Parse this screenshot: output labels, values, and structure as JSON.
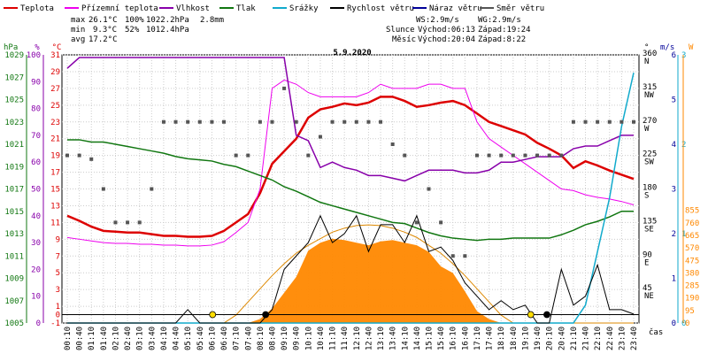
{
  "chart_data": {
    "type": "line",
    "title": "5.9.2020",
    "xlabel": "čas",
    "x": [
      "00:10",
      "00:40",
      "01:10",
      "01:40",
      "02:10",
      "02:40",
      "03:10",
      "03:40",
      "04:10",
      "04:40",
      "05:10",
      "05:40",
      "06:10",
      "06:40",
      "07:10",
      "07:40",
      "08:10",
      "08:40",
      "09:10",
      "09:40",
      "10:10",
      "10:40",
      "11:10",
      "11:40",
      "12:10",
      "12:40",
      "13:10",
      "13:40",
      "14:10",
      "14:40",
      "15:10",
      "15:40",
      "16:10",
      "16:40",
      "17:10",
      "17:40",
      "18:10",
      "18:40",
      "19:10",
      "19:40",
      "20:10",
      "20:40",
      "21:10",
      "21:40",
      "22:10",
      "22:40",
      "23:10",
      "23:40"
    ],
    "legend": [
      {
        "label": "Teplota",
        "color": "#dd0000"
      },
      {
        "label": "Přízemní teplota",
        "color": "#ee00ee"
      },
      {
        "label": "Vlhkost",
        "color": "#8800aa"
      },
      {
        "label": "Tlak",
        "color": "#117711"
      },
      {
        "label": "Srážky",
        "color": "#11aacc"
      },
      {
        "label": "Rychlost větru",
        "color": "#000000"
      },
      {
        "label": "Náraz větru",
        "color": "#000099"
      },
      {
        "label": "Směr větru",
        "color": "#555555"
      }
    ],
    "stats": {
      "max_label": "max",
      "max_temp": "26.1°C",
      "max_hum": "100%",
      "max_press": "1022.2hPa",
      "rain": "2.8mm",
      "min_label": "min",
      "min_temp": "9.3°C",
      "min_hum": "52%",
      "min_press": "1012.4hPa",
      "avg_label": "avg",
      "avg_temp": "17.2°C"
    },
    "info": {
      "ws": "WS:2.9m/s",
      "wg": "WG:2.9m/s",
      "sun_label": "Slunce",
      "sun_rise": "Východ:06:13",
      "sun_set": "Západ:19:24",
      "moon_label": "Měsíc",
      "moon_rise": "Východ:20:04",
      "moon_set": "Západ:8:22"
    },
    "axes": {
      "pressure": {
        "unit": "hPa",
        "ticks": [
          "1029",
          "1027",
          "1025",
          "1023",
          "1021",
          "1019",
          "1017",
          "1015",
          "1013",
          "1011",
          "1009",
          "1007",
          "1005"
        ],
        "range": [
          1005,
          1029
        ]
      },
      "humidity": {
        "unit": "%",
        "ticks": [
          "100",
          "90",
          "80",
          "70",
          "60",
          "50",
          "40",
          "30",
          "20",
          "10",
          "0"
        ],
        "range": [
          0,
          100
        ]
      },
      "temperature": {
        "unit": "°C",
        "ticks": [
          "31",
          "29",
          "27",
          "25",
          "23",
          "21",
          "19",
          "17",
          "15",
          "13",
          "11",
          "9",
          "7",
          "5",
          "3",
          "1",
          "0",
          "-1"
        ],
        "range": [
          -1,
          31
        ]
      },
      "direction": {
        "unit": "°",
        "ticks": [
          "360",
          "N",
          "315",
          "NW",
          "270",
          "W",
          "225",
          "SW",
          "180",
          "S",
          "135",
          "SE",
          "90",
          "E",
          "45",
          "NE"
        ]
      },
      "wind": {
        "unit": "m/s",
        "ticks": [
          "6",
          "5",
          "4",
          "3",
          "2",
          "1",
          "0"
        ],
        "range": [
          0,
          6
        ]
      },
      "rain": {
        "unit": "mm",
        "ticks": [
          "3",
          "2",
          "1",
          "0"
        ],
        "range": [
          0,
          3
        ]
      },
      "radiation": {
        "unit": "W",
        "ticks": [
          "855",
          "760",
          "665",
          "570",
          "475",
          "380",
          "285",
          "190",
          "95",
          "0"
        ],
        "range": [
          0,
          855
        ]
      }
    },
    "series": [
      {
        "name": "Teplota",
        "unit": "°C",
        "values": [
          11.8,
          11.2,
          10.5,
          10.0,
          9.9,
          9.8,
          9.8,
          9.6,
          9.4,
          9.4,
          9.3,
          9.3,
          9.4,
          10.0,
          11.0,
          12.0,
          14.5,
          18.0,
          19.5,
          21.0,
          23.5,
          24.5,
          24.8,
          25.2,
          25.0,
          25.3,
          26.0,
          26.0,
          25.5,
          24.8,
          25.0,
          25.3,
          25.5,
          25.0,
          24.0,
          23.0,
          22.5,
          22.0,
          21.5,
          20.5,
          19.8,
          19.0,
          17.5,
          18.3,
          17.8,
          17.2,
          16.7,
          16.2
        ]
      },
      {
        "name": "Přízemní teplota",
        "unit": "°C",
        "values": [
          9.2,
          9.0,
          8.8,
          8.6,
          8.5,
          8.5,
          8.4,
          8.4,
          8.3,
          8.3,
          8.2,
          8.2,
          8.3,
          8.7,
          9.8,
          11.0,
          15.0,
          27.0,
          28.0,
          27.5,
          26.5,
          26.0,
          26.0,
          26.0,
          26.0,
          26.5,
          27.5,
          27.0,
          27.0,
          27.0,
          27.5,
          27.5,
          27.0,
          27.0,
          23.0,
          21.0,
          20.0,
          19.0,
          18.0,
          17.0,
          16.0,
          15.0,
          14.8,
          14.3,
          14.0,
          13.8,
          13.5,
          13.1
        ]
      },
      {
        "name": "Vlhkost",
        "unit": "%",
        "values": [
          95,
          99,
          99,
          99,
          99,
          99,
          99,
          99,
          99,
          99,
          99,
          99,
          99,
          99,
          99,
          99,
          99,
          99,
          99,
          70,
          68,
          58,
          60,
          58,
          57,
          55,
          55,
          54,
          53,
          55,
          57,
          57,
          57,
          56,
          56,
          57,
          60,
          60,
          61,
          62,
          62,
          62,
          65,
          66,
          66,
          68,
          70,
          70
        ]
      },
      {
        "name": "Tlak",
        "unit": "hPa",
        "values": [
          1021.4,
          1021.4,
          1021.2,
          1021.2,
          1021.0,
          1020.8,
          1020.6,
          1020.4,
          1020.2,
          1019.9,
          1019.7,
          1019.6,
          1019.5,
          1019.2,
          1019.0,
          1018.6,
          1018.2,
          1017.8,
          1017.2,
          1016.8,
          1016.3,
          1015.8,
          1015.5,
          1015.2,
          1014.9,
          1014.6,
          1014.3,
          1014.0,
          1013.9,
          1013.5,
          1013.1,
          1012.8,
          1012.6,
          1012.5,
          1012.4,
          1012.5,
          1012.5,
          1012.6,
          1012.6,
          1012.6,
          1012.6,
          1012.9,
          1013.3,
          1013.8,
          1014.1,
          1014.5,
          1015.0,
          1015.0
        ]
      },
      {
        "name": "Srážky",
        "unit": "mm",
        "values": [
          0,
          0,
          0,
          0,
          0,
          0,
          0,
          0,
          0,
          0,
          0,
          0,
          0,
          0,
          0,
          0,
          0,
          0,
          0,
          0,
          0,
          0,
          0,
          0,
          0,
          0,
          0,
          0,
          0,
          0,
          0,
          0,
          0,
          0,
          0,
          0,
          0,
          0,
          0,
          0,
          0,
          0,
          0,
          0.2,
          0.8,
          1.4,
          2.2,
          2.8
        ]
      },
      {
        "name": "Rychlost větru",
        "unit": "m/s",
        "values": [
          0,
          0,
          0,
          0,
          0,
          0,
          0,
          0,
          0,
          0,
          0.3,
          0,
          0,
          0,
          0,
          0,
          0,
          0.3,
          1.2,
          1.5,
          1.8,
          2.4,
          1.8,
          2.0,
          2.4,
          1.6,
          2.2,
          2.2,
          1.8,
          2.4,
          1.6,
          1.7,
          1.4,
          0.9,
          0.6,
          0.3,
          0.5,
          0.3,
          0.4,
          0,
          0,
          1.2,
          0.4,
          0.6,
          1.3,
          0.3,
          0.3,
          0.2
        ]
      },
      {
        "name": "Směr větru",
        "unit": "°",
        "values": [
          225,
          225,
          220,
          180,
          135,
          135,
          135,
          180,
          270,
          270,
          270,
          270,
          270,
          270,
          225,
          225,
          270,
          270,
          315,
          270,
          225,
          250,
          270,
          270,
          270,
          270,
          270,
          240,
          225,
          135,
          180,
          135,
          90,
          90,
          225,
          225,
          225,
          225,
          225,
          225,
          225,
          225,
          270,
          270,
          270,
          270,
          270,
          270
        ]
      }
    ],
    "radiation": [
      0,
      0,
      0,
      0,
      0,
      0,
      0,
      0,
      0,
      0,
      0,
      0,
      0,
      0,
      0,
      0,
      30,
      110,
      230,
      350,
      550,
      610,
      640,
      630,
      610,
      590,
      620,
      630,
      610,
      590,
      540,
      430,
      380,
      240,
      90,
      30,
      0,
      0,
      0,
      0,
      0,
      0,
      0,
      0,
      0,
      0,
      0,
      0
    ],
    "sun_curve": [
      0,
      0,
      0,
      0,
      0,
      0,
      0,
      0,
      0,
      0,
      0,
      0,
      0,
      0,
      60,
      160,
      260,
      360,
      450,
      530,
      590,
      640,
      690,
      720,
      740,
      745,
      740,
      720,
      690,
      650,
      590,
      530,
      450,
      360,
      260,
      160,
      60,
      0,
      0,
      0,
      0,
      0,
      0,
      0,
      0,
      0,
      0,
      0
    ],
    "grid": true,
    "legend_placement": "top"
  }
}
